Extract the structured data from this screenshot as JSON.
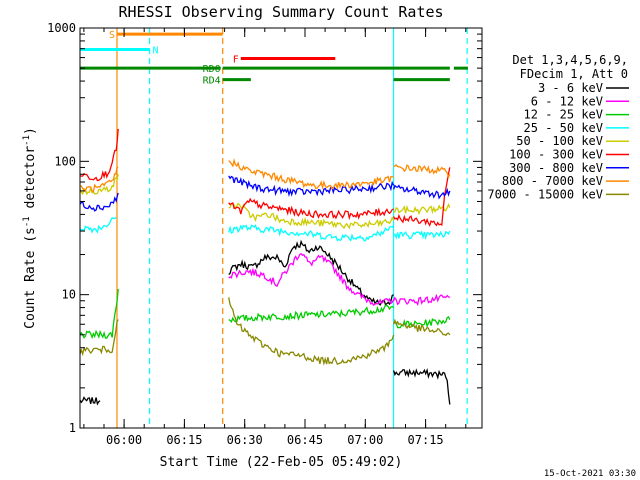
{
  "chart_data": {
    "type": "line",
    "title": "RHESSI Observing Summary Count Rates",
    "xlabel": "Start Time (22-Feb-05 05:49:02)",
    "ylabel_main": "Count Rate (s",
    "ylabel_sup": "-1",
    "ylabel_tail": " detector",
    "ylabel_close": ")",
    "yscale": "log",
    "ylim": [
      1,
      1000
    ],
    "xlim_minutes": [
      0,
      100
    ],
    "y_ticks": [
      {
        "value": 1,
        "label": "1"
      },
      {
        "value": 10,
        "label": "10"
      },
      {
        "value": 100,
        "label": "100"
      },
      {
        "value": 1000,
        "label": "1000"
      }
    ],
    "x_ticks": [
      {
        "min": 10.97,
        "label": "06:00"
      },
      {
        "min": 25.97,
        "label": "06:15"
      },
      {
        "min": 40.97,
        "label": "06:30"
      },
      {
        "min": 55.97,
        "label": "06:45"
      },
      {
        "min": 70.97,
        "label": "07:00"
      },
      {
        "min": 85.97,
        "label": "07:15"
      }
    ],
    "legend_header": [
      "Det 1,3,4,5,6,9,",
      "FDecim 1, Att 0"
    ],
    "series": [
      {
        "name": "3 - 6 keV",
        "color": "#000000",
        "segments": [
          [
            [
              0,
              1.6
            ],
            [
              5,
              1.6
            ]
          ],
          [
            [
              37,
              15
            ],
            [
              40,
              17
            ],
            [
              43,
              16
            ],
            [
              46,
              19
            ],
            [
              49,
              19
            ],
            [
              51,
              16
            ],
            [
              53,
              23
            ],
            [
              55,
              24
            ],
            [
              57,
              21
            ],
            [
              59,
              23
            ],
            [
              61,
              21
            ],
            [
              63,
              18
            ],
            [
              66,
              14
            ],
            [
              69,
              11
            ],
            [
              72,
              9
            ],
            [
              75,
              8.5
            ],
            [
              77,
              9
            ],
            [
              78,
              10
            ]
          ],
          [
            [
              78,
              2.6
            ],
            [
              84,
              2.6
            ],
            [
              91,
              2.5
            ],
            [
              92,
              1.5
            ]
          ]
        ]
      },
      {
        "name": "6 - 12 keV",
        "color": "#ff00ff",
        "segments": [
          [
            [
              37,
              14
            ],
            [
              42,
              15
            ],
            [
              46,
              14
            ],
            [
              49,
              12
            ],
            [
              52,
              16
            ],
            [
              55,
              21
            ],
            [
              57,
              17
            ],
            [
              60,
              19
            ],
            [
              63,
              16
            ],
            [
              66,
              12
            ],
            [
              69,
              10
            ],
            [
              72,
              9
            ],
            [
              75,
              8.6
            ],
            [
              78,
              9.2
            ]
          ],
          [
            [
              78,
              9
            ],
            [
              84,
              9
            ],
            [
              92,
              9.5
            ]
          ]
        ]
      },
      {
        "name": "12 - 25 keV",
        "color": "#00cc00",
        "segments": [
          [
            [
              0,
              5
            ],
            [
              8,
              5
            ],
            [
              9,
              8
            ],
            [
              9.5,
              11
            ]
          ],
          [
            [
              37,
              6.5
            ],
            [
              45,
              6.8
            ],
            [
              55,
              7
            ],
            [
              65,
              7.2
            ],
            [
              75,
              7.8
            ],
            [
              78,
              8
            ]
          ],
          [
            [
              78,
              6
            ],
            [
              84,
              6
            ],
            [
              92,
              6.5
            ]
          ]
        ]
      },
      {
        "name": "25 - 50 keV",
        "color": "#00ffff",
        "segments": [
          [
            [
              0,
              32
            ],
            [
              4,
              31
            ],
            [
              7,
              34
            ],
            [
              9,
              38
            ]
          ],
          [
            [
              37,
              30
            ],
            [
              40,
              32
            ],
            [
              46,
              31
            ],
            [
              55,
              29
            ],
            [
              63,
              27
            ],
            [
              72,
              27
            ],
            [
              76,
              30
            ],
            [
              78,
              33
            ]
          ],
          [
            [
              78,
              28
            ],
            [
              84,
              28
            ],
            [
              90,
              28
            ],
            [
              92,
              30
            ]
          ]
        ]
      },
      {
        "name": "50 - 100 keV",
        "color": "#cccc00",
        "segments": [
          [
            [
              0,
              60
            ],
            [
              5,
              60
            ],
            [
              7,
              62
            ],
            [
              9,
              72
            ],
            [
              9.5,
              80
            ]
          ],
          [
            [
              37,
              46
            ],
            [
              40,
              47
            ],
            [
              42,
              40
            ],
            [
              44,
              38
            ],
            [
              47,
              40
            ],
            [
              50,
              36
            ],
            [
              56,
              35
            ],
            [
              62,
              34
            ],
            [
              68,
              33
            ],
            [
              74,
              34
            ],
            [
              78,
              36
            ]
          ],
          [
            [
              78,
              43
            ],
            [
              84,
              43
            ],
            [
              92,
              45
            ]
          ]
        ]
      },
      {
        "name": "100 - 300 keV",
        "color": "#ff0000",
        "segments": [
          [
            [
              0,
              80
            ],
            [
              4,
              75
            ],
            [
              7,
              82
            ],
            [
              9,
              120
            ],
            [
              9.5,
              175
            ]
          ],
          [
            [
              37,
              48
            ],
            [
              40,
              42
            ],
            [
              42,
              50
            ],
            [
              46,
              46
            ],
            [
              50,
              44
            ],
            [
              55,
              41
            ],
            [
              60,
              40
            ],
            [
              65,
              40
            ],
            [
              70,
              40
            ],
            [
              76,
              42
            ],
            [
              78,
              44
            ]
          ],
          [
            [
              78,
              38
            ],
            [
              84,
              36
            ],
            [
              90,
              34
            ],
            [
              92,
              90
            ]
          ]
        ]
      },
      {
        "name": "300 - 800 keV",
        "color": "#0000ff",
        "segments": [
          [
            [
              0,
              48
            ],
            [
              4,
              45
            ],
            [
              7,
              46
            ],
            [
              9,
              52
            ],
            [
              9.5,
              58
            ]
          ],
          [
            [
              37,
              76
            ],
            [
              40,
              70
            ],
            [
              42,
              66
            ],
            [
              46,
              62
            ],
            [
              50,
              60
            ],
            [
              55,
              59
            ],
            [
              60,
              60
            ],
            [
              66,
              61
            ],
            [
              72,
              63
            ],
            [
              78,
              66
            ]
          ],
          [
            [
              78,
              63
            ],
            [
              84,
              60
            ],
            [
              90,
              56
            ],
            [
              92,
              60
            ]
          ]
        ]
      },
      {
        "name": "800 - 7000 keV",
        "color": "#ff8800",
        "segments": [
          [
            [
              0,
              62
            ],
            [
              5,
              63
            ],
            [
              8,
              70
            ],
            [
              9.5,
              90
            ]
          ],
          [
            [
              37,
              100
            ],
            [
              40,
              92
            ],
            [
              42,
              85
            ],
            [
              46,
              80
            ],
            [
              52,
              72
            ],
            [
              58,
              66
            ],
            [
              64,
              66
            ],
            [
              70,
              68
            ],
            [
              76,
              72
            ],
            [
              78,
              76
            ]
          ],
          [
            [
              78,
              90
            ],
            [
              84,
              88
            ],
            [
              90,
              85
            ],
            [
              92,
              80
            ]
          ]
        ]
      },
      {
        "name": "7000 - 15000 keV",
        "color": "#888800",
        "segments": [
          [
            [
              0,
              3.8
            ],
            [
              8,
              3.9
            ],
            [
              9.5,
              6.5
            ]
          ],
          [
            [
              37,
              9
            ],
            [
              39,
              6
            ],
            [
              42,
              5
            ],
            [
              45,
              4.3
            ],
            [
              50,
              3.6
            ],
            [
              55,
              3.5
            ],
            [
              60,
              3.2
            ],
            [
              65,
              3.2
            ],
            [
              70,
              3.4
            ],
            [
              76,
              4
            ],
            [
              78,
              5
            ]
          ],
          [
            [
              78,
              6.2
            ],
            [
              84,
              5.6
            ],
            [
              90,
              5.2
            ],
            [
              92,
              5
            ]
          ]
        ]
      }
    ],
    "flags": [
      {
        "label": "S",
        "color": "#ff8800",
        "x_start": 9.2,
        "x_end": 35.5,
        "level": 900,
        "label_at": "left"
      },
      {
        "label": "N",
        "color": "#00ffff",
        "x_start": 0,
        "x_end": 17.3,
        "level": 690,
        "label_at": "right"
      },
      {
        "label": "F",
        "color": "#ff0000",
        "x_start": 40,
        "x_end": 63.5,
        "level": 590,
        "label_at": "left"
      },
      {
        "label": "RD0",
        "color": "#008800",
        "x_start": 0,
        "x_end": 35,
        "level": 500,
        "label_at": "none"
      },
      {
        "label": "RD0",
        "color": "#008800",
        "x_start": 35.5,
        "x_end": 78,
        "level": 500,
        "label_at": "left"
      },
      {
        "label": "RD0",
        "color": "#008800",
        "x_start": 78,
        "x_end": 92,
        "level": 500,
        "label_at": "none"
      },
      {
        "label": "RD0",
        "color": "#008800",
        "x_start": 93,
        "x_end": 96.5,
        "level": 500,
        "label_at": "none"
      },
      {
        "label": "RD4",
        "color": "#008800",
        "x_start": 35.5,
        "x_end": 42.5,
        "level": 410,
        "label_at": "left"
      },
      {
        "label": "RD4",
        "color": "#008800",
        "x_start": 78,
        "x_end": 92,
        "level": 410,
        "label_at": "none"
      }
    ],
    "vertical_markers": [
      {
        "x": 9.2,
        "color": "#ff8800",
        "style": "solid"
      },
      {
        "x": 17.3,
        "color": "#00ffff",
        "style": "dashed"
      },
      {
        "x": 35.5,
        "color": "#ff8800",
        "style": "dashed"
      },
      {
        "x": 78,
        "color": "#00ffff",
        "style": "solid"
      },
      {
        "x": 96.3,
        "color": "#00ffff",
        "style": "dashed"
      }
    ],
    "timestamp": "15-Oct-2021 03:30"
  }
}
